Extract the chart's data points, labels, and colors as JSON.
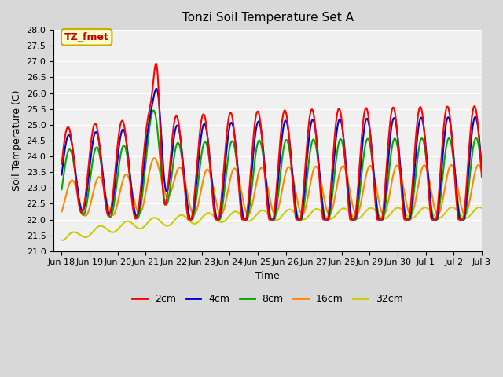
{
  "title": "Tonzi Soil Temperature Set A",
  "xlabel": "Time",
  "ylabel": "Soil Temperature (C)",
  "ylim": [
    21.0,
    28.0
  ],
  "yticks": [
    21.0,
    21.5,
    22.0,
    22.5,
    23.0,
    23.5,
    24.0,
    24.5,
    25.0,
    25.5,
    26.0,
    26.5,
    27.0,
    27.5,
    28.0
  ],
  "xtick_labels": [
    "Jun 18",
    "Jun 19",
    "Jun 20",
    "Jun 21",
    "Jun 22",
    "Jun 23",
    "Jun 24",
    "Jun 25",
    "Jun 26",
    "Jun 27",
    "Jun 28",
    "Jun 29",
    "Jun 30",
    "Jul 1",
    "Jul 2",
    "Jul 3"
  ],
  "annotation_text": "TZ_fmet",
  "annotation_bg": "#ffffcc",
  "annotation_border": "#ccaa00",
  "annotation_text_color": "#cc0000",
  "legend_labels": [
    "2cm",
    "4cm",
    "8cm",
    "16cm",
    "32cm"
  ],
  "line_colors": [
    "#ff0000",
    "#0000cc",
    "#00aa00",
    "#ff8800",
    "#cccc00"
  ],
  "line_widths": [
    1.5,
    1.5,
    1.5,
    1.5,
    1.5
  ],
  "plot_bg_color": "#f0f0f0",
  "fig_bg_color": "#d8d8d8",
  "grid_color": "#ffffff"
}
